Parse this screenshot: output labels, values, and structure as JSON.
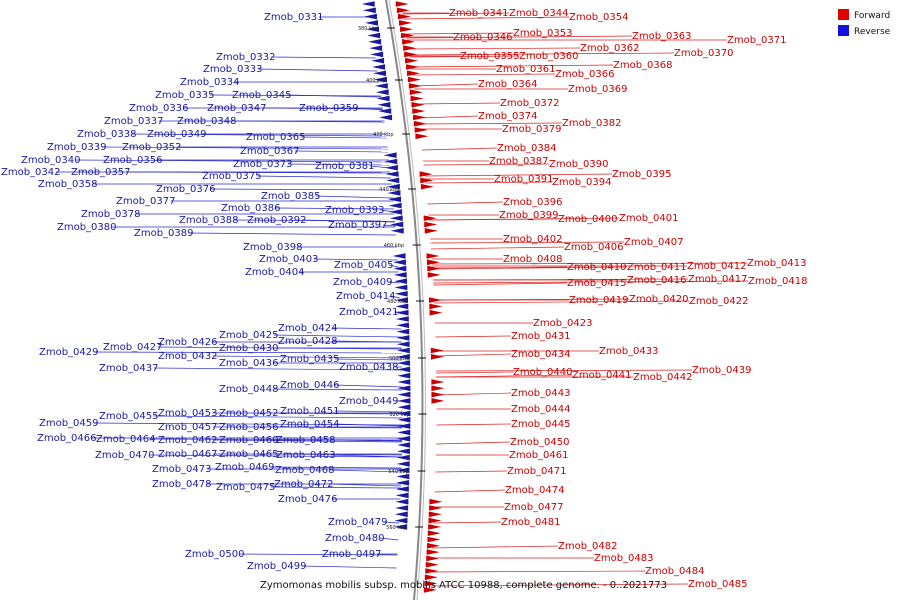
{
  "caption": "Zymomonas mobilis subsp. mobilis ATCC 10988, complete genome. - 0..2021773",
  "legend": [
    {
      "label": "Forward",
      "color": "#e00000"
    },
    {
      "label": "Reverse",
      "color": "#1010e0"
    }
  ],
  "colors": {
    "forward": "#cc0000",
    "reverse": "#1a1aa0",
    "backbone": "#888888"
  },
  "ticks": [
    "380 kbp",
    "400 kbp",
    "420 kbp",
    "440 kbp",
    "460 kbp",
    "480 kbp",
    "500 kbp",
    "520 kbp",
    "540 kbp",
    "560 kbp"
  ],
  "reverse_genes": [
    "Zmob_0331",
    "Zmob_0332",
    "Zmob_0333",
    "Zmob_0334",
    "Zmob_0335",
    "Zmob_0345",
    "Zmob_0336",
    "Zmob_0347",
    "Zmob_0359",
    "Zmob_0337",
    "Zmob_0348",
    "Zmob_0338",
    "Zmob_0349",
    "Zmob_0365",
    "Zmob_0339",
    "Zmob_0352",
    "Zmob_0367",
    "Zmob_0340",
    "Zmob_0356",
    "Zmob_0373",
    "Zmob_0381",
    "Zmob_0342",
    "Zmob_0357",
    "Zmob_0375",
    "Zmob_0358",
    "Zmob_0376",
    "Zmob_0385",
    "Zmob_0377",
    "Zmob_0386",
    "Zmob_0393",
    "Zmob_0378",
    "Zmob_0388",
    "Zmob_0392",
    "Zmob_0380",
    "Zmob_0397",
    "Zmob_0389",
    "Zmob_0398",
    "Zmob_0403",
    "Zmob_0405",
    "Zmob_0404",
    "Zmob_0409",
    "Zmob_0414",
    "Zmob_0421",
    "Zmob_0424",
    "Zmob_0425",
    "Zmob_0426",
    "Zmob_0428",
    "Zmob_0427",
    "Zmob_0430",
    "Zmob_0429",
    "Zmob_0432",
    "Zmob_0436",
    "Zmob_0435",
    "Zmob_0437",
    "Zmob_0438",
    "Zmob_0448",
    "Zmob_0446",
    "Zmob_0449",
    "Zmob_0451",
    "Zmob_0455",
    "Zmob_0453",
    "Zmob_0452",
    "Zmob_0459",
    "Zmob_0457",
    "Zmob_0456",
    "Zmob_0454",
    "Zmob_0466",
    "Zmob_0464",
    "Zmob_0462",
    "Zmob_0460",
    "Zmob_0458",
    "Zmob_0470",
    "Zmob_0467",
    "Zmob_0465",
    "Zmob_0463",
    "Zmob_0473",
    "Zmob_0469",
    "Zmob_0468",
    "Zmob_0478",
    "Zmob_0475",
    "Zmob_0472",
    "Zmob_0476",
    "Zmob_0479",
    "Zmob_0480",
    "Zmob_0497",
    "Zmob_0500",
    "Zmob_0499"
  ],
  "forward_genes": [
    "Zmob_0341",
    "Zmob_0344",
    "Zmob_0354",
    "Zmob_0346",
    "Zmob_0353",
    "Zmob_0363",
    "Zmob_0371",
    "Zmob_0362",
    "Zmob_0370",
    "Zmob_0355",
    "Zmob_0360",
    "Zmob_0368",
    "Zmob_0361",
    "Zmob_0366",
    "Zmob_0364",
    "Zmob_0369",
    "Zmob_0372",
    "Zmob_0374",
    "Zmob_0379",
    "Zmob_0382",
    "Zmob_0384",
    "Zmob_0387",
    "Zmob_0390",
    "Zmob_0395",
    "Zmob_0391",
    "Zmob_0394",
    "Zmob_0396",
    "Zmob_0399",
    "Zmob_0400",
    "Zmob_0401",
    "Zmob_0402",
    "Zmob_0407",
    "Zmob_0406",
    "Zmob_0408",
    "Zmob_0410",
    "Zmob_0411",
    "Zmob_0412",
    "Zmob_0413",
    "Zmob_0415",
    "Zmob_0416",
    "Zmob_0417",
    "Zmob_0418",
    "Zmob_0419",
    "Zmob_0420",
    "Zmob_0422",
    "Zmob_0423",
    "Zmob_0431",
    "Zmob_0434",
    "Zmob_0433",
    "Zmob_0440",
    "Zmob_0441",
    "Zmob_0442",
    "Zmob_0439",
    "Zmob_0443",
    "Zmob_0444",
    "Zmob_0445",
    "Zmob_0450",
    "Zmob_0461",
    "Zmob_0471",
    "Zmob_0474",
    "Zmob_0477",
    "Zmob_0481",
    "Zmob_0482",
    "Zmob_0483",
    "Zmob_0484",
    "Zmob_0485"
  ]
}
